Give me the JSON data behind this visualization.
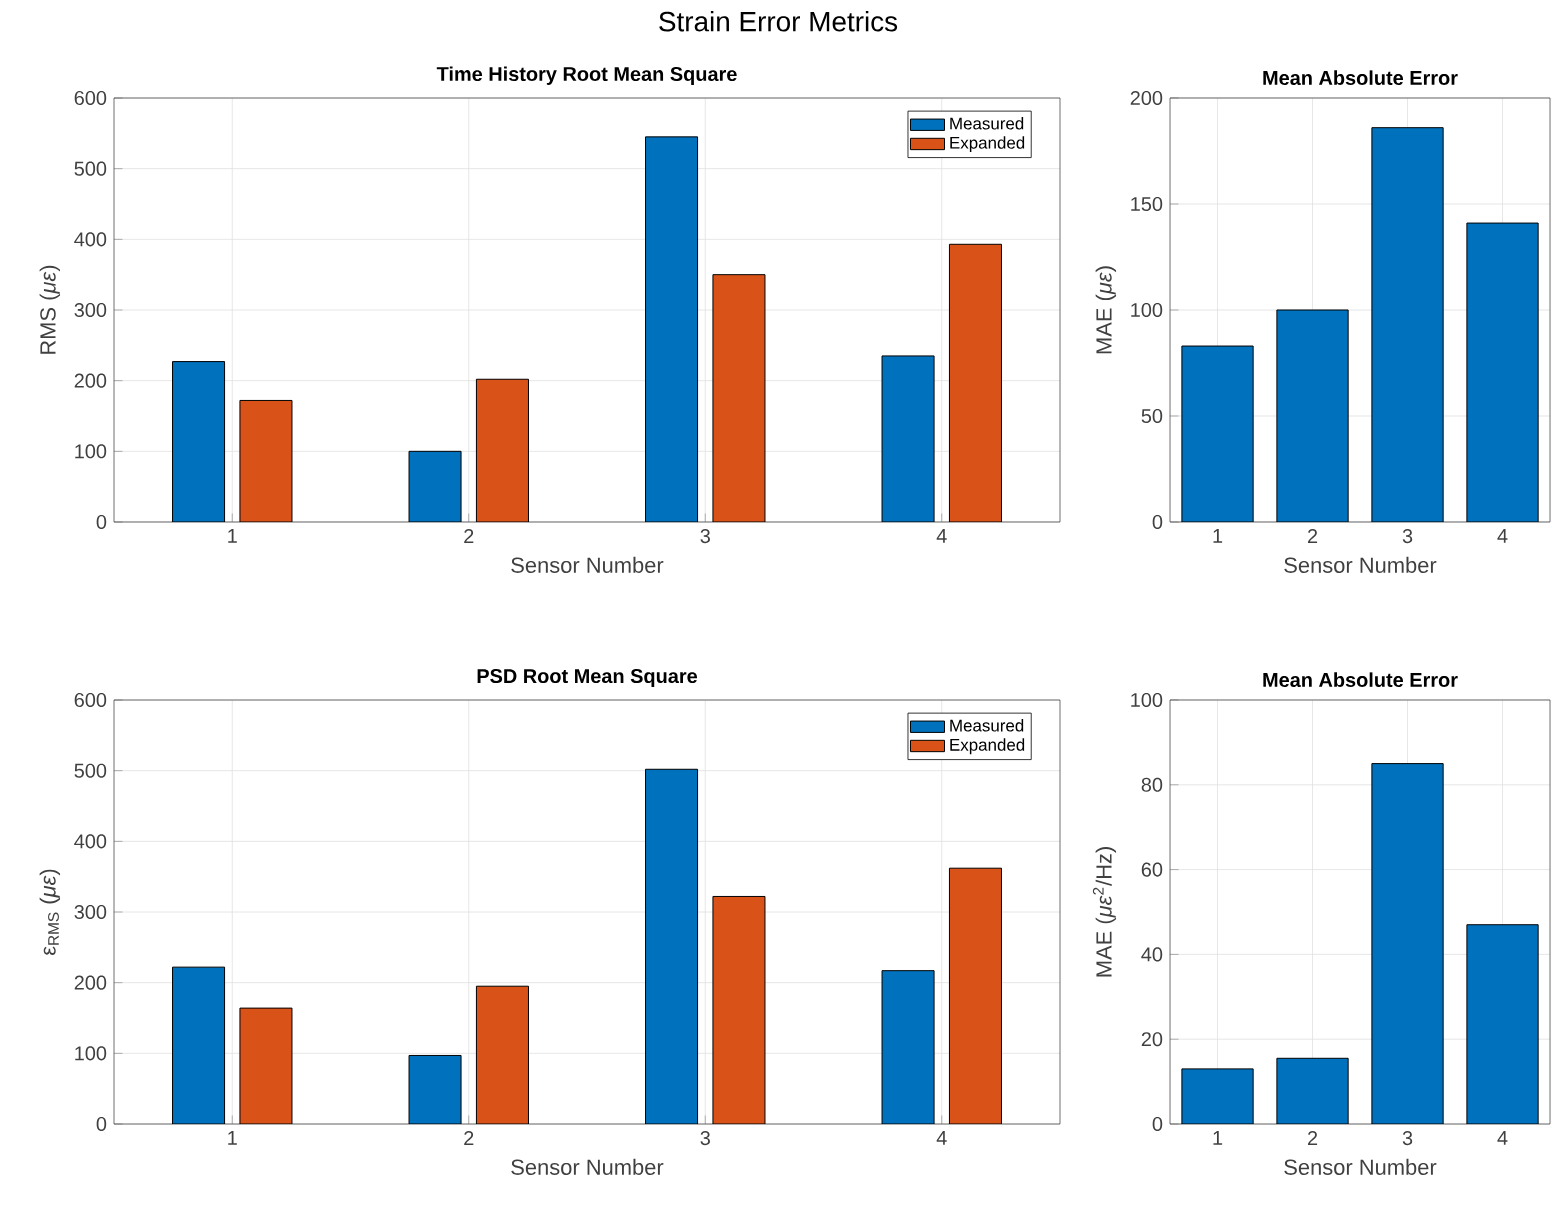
{
  "chart_data": [
    {
      "type": "bar",
      "title": "Time History Root Mean Square",
      "xlabel": "Sensor Number",
      "ylabel": "RMS (*με*)",
      "annotations": [
        "Strain Error Metrics"
      ],
      "categories": [
        "1",
        "2",
        "3",
        "4"
      ],
      "series": [
        {
          "name": "Measured",
          "color": "#0072bd",
          "values": [
            227,
            100,
            545,
            235
          ]
        },
        {
          "name": "Expanded",
          "color": "#d95319",
          "values": [
            172,
            202,
            350,
            393
          ]
        }
      ],
      "ylim": [
        0,
        600
      ],
      "yticks": [
        0,
        100,
        200,
        300,
        400,
        500,
        600
      ],
      "grid": true,
      "legend": "top right"
    },
    {
      "type": "bar",
      "title": "Mean Absolute Error",
      "xlabel": "Sensor Number",
      "ylabel": "MAE (*με*)",
      "categories": [
        "1",
        "2",
        "3",
        "4"
      ],
      "series": [
        {
          "color": "#0072bd",
          "values": [
            83,
            100,
            186,
            141
          ]
        }
      ],
      "ylim": [
        0,
        200
      ],
      "yticks": [
        0,
        50,
        100,
        150,
        200
      ],
      "grid": true
    },
    {
      "type": "bar",
      "title": "PSD Root Mean Square",
      "xlabel": "Sensor Number",
      "ylabel": "ε$_{RMS}$ (*με*)",
      "categories": [
        "1",
        "2",
        "3",
        "4"
      ],
      "series": [
        {
          "name": "Measured",
          "color": "#0072bd",
          "values": [
            222,
            97,
            502,
            217
          ]
        },
        {
          "name": "Expanded",
          "color": "#d95319",
          "values": [
            164,
            195,
            322,
            362
          ]
        }
      ],
      "ylim": [
        0,
        600
      ],
      "yticks": [
        0,
        100,
        200,
        300,
        400,
        500,
        600
      ],
      "grid": true,
      "legend": "top right"
    },
    {
      "type": "bar",
      "title": "Mean Absolute Error",
      "xlabel": "Sensor Number",
      "ylabel": "MAE (*με*$^{2}$/Hz)",
      "categories": [
        "1",
        "2",
        "3",
        "4"
      ],
      "series": [
        {
          "color": "#0072bd",
          "values": [
            13,
            15.5,
            85,
            47
          ]
        }
      ],
      "ylim": [
        0,
        100
      ],
      "yticks": [
        0,
        20,
        40,
        60,
        80,
        100
      ],
      "grid": true
    }
  ]
}
